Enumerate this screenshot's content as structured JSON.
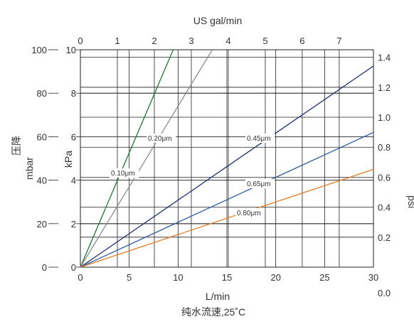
{
  "chart_data": {
    "type": "line",
    "title": "",
    "xlabel": "L/min",
    "xlabel_top": "US gal/min",
    "caption": "纯水流速,25˚C",
    "ylabel_left_cn": "压降",
    "ylabel_left_unit": "mbar",
    "ylabel_inner": "kPa",
    "ylabel_right": "psi",
    "xlim": [
      0,
      30
    ],
    "ylim_mbar": [
      0,
      100
    ],
    "x_ticks": [
      "0",
      "5",
      "10",
      "15",
      "20",
      "25",
      "30"
    ],
    "x_top_ticks": [
      "0",
      "1",
      "2",
      "3",
      "4",
      "5",
      "6",
      "7"
    ],
    "y_mbar_ticks": [
      "0",
      "20",
      "40",
      "60",
      "80",
      "100"
    ],
    "y_kpa_ticks": [
      "0",
      "2",
      "4",
      "6",
      "8",
      "10"
    ],
    "y_psi_ticks": [
      "0.0",
      "0.2",
      "0.4",
      "0.6",
      "0.8",
      "1.0",
      "1.2",
      "1.4"
    ],
    "grid": true,
    "series": [
      {
        "name": "0.10μm",
        "color": "#1e7a32",
        "x": [
          0,
          9.5
        ],
        "y": [
          0,
          100
        ]
      },
      {
        "name": "0.20μm",
        "color": "#8c8c8c",
        "x": [
          0,
          13.5
        ],
        "y": [
          0,
          100
        ]
      },
      {
        "name": "0.45μm",
        "color": "#1f2f72",
        "x": [
          0,
          30
        ],
        "y": [
          0,
          92.5
        ]
      },
      {
        "name": "0.65μm",
        "color": "#2a5aa0",
        "x": [
          0,
          30
        ],
        "y": [
          0,
          62
        ]
      },
      {
        "name": "0.80μm",
        "color": "#e87a1e",
        "x": [
          0,
          30
        ],
        "y": [
          0,
          45
        ]
      }
    ]
  }
}
